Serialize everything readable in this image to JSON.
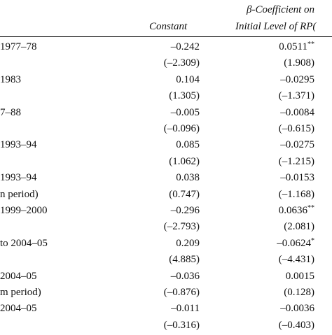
{
  "header": {
    "col1": "Constant",
    "col2_line1": "β-Coefficient on",
    "col2_line2": "Initial Level of RP("
  },
  "rows": [
    {
      "label": "1977–78",
      "constant": "–0.242",
      "beta": "0.0511",
      "beta_mark": "**"
    },
    {
      "label": "",
      "constant": "(–2.309)",
      "beta": "(1.908)",
      "beta_mark": ""
    },
    {
      "label": "1983",
      "constant": "0.104",
      "beta": "–0.0295",
      "beta_mark": ""
    },
    {
      "label": "",
      "constant": "(1.305)",
      "beta": "(–1.371)",
      "beta_mark": ""
    },
    {
      "label": "7–88",
      "constant": "–0.005",
      "beta": "–0.0084",
      "beta_mark": ""
    },
    {
      "label": "",
      "constant": "(–0.096)",
      "beta": "(–0.615)",
      "beta_mark": ""
    },
    {
      "label": "1993–94",
      "constant": "0.085",
      "beta": "–0.0275",
      "beta_mark": ""
    },
    {
      "label": "",
      "constant": "(1.062)",
      "beta": "(–1.215)",
      "beta_mark": ""
    },
    {
      "label": "1993–94",
      "constant": "0.038",
      "beta": "–0.0153",
      "beta_mark": ""
    },
    {
      "label": "n period)",
      "constant": "(0.747)",
      "beta": "(–1.168)",
      "beta_mark": ""
    },
    {
      "label": "1999–2000",
      "constant": "–0.296",
      "beta": "0.0636",
      "beta_mark": "**"
    },
    {
      "label": "",
      "constant": "(–2.793)",
      "beta": "(2.081)",
      "beta_mark": ""
    },
    {
      "label": "to 2004–05",
      "constant": "0.209",
      "beta": "–0.0624",
      "beta_mark": "*"
    },
    {
      "label": "",
      "constant": "(4.885)",
      "beta": "(–4.431)",
      "beta_mark": ""
    },
    {
      "label": "2004–05",
      "constant": "–0.036",
      "beta": "0.0015",
      "beta_mark": ""
    },
    {
      "label": "m period)",
      "constant": "(–0.876)",
      "beta": "(0.128)",
      "beta_mark": ""
    },
    {
      "label": "2004–05",
      "constant": "–0.011",
      "beta": "–0.0036",
      "beta_mark": ""
    },
    {
      "label": "",
      "constant": "(–0.316)",
      "beta": "(–0.403)",
      "beta_mark": ""
    }
  ]
}
